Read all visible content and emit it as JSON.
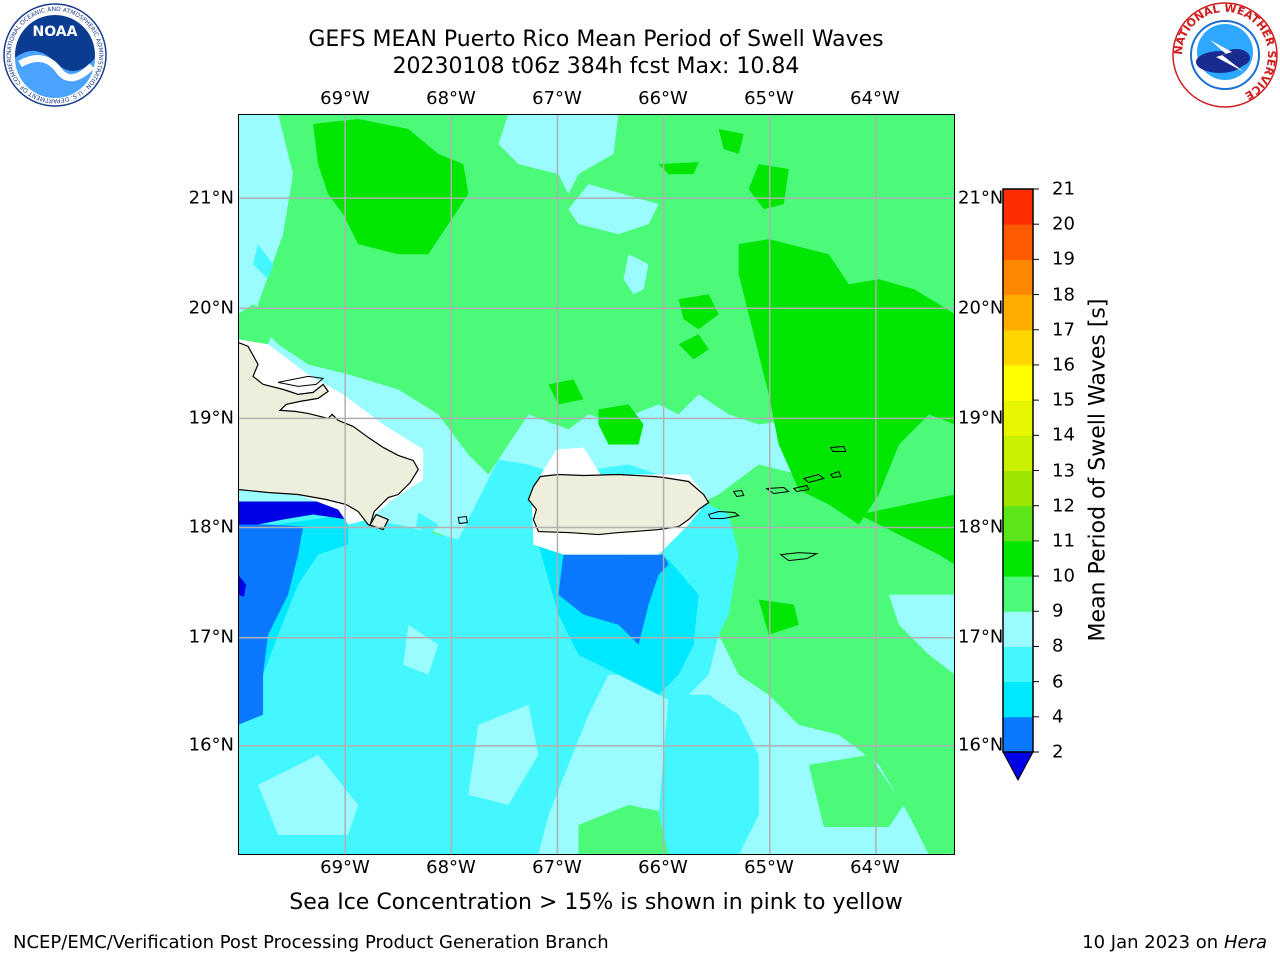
{
  "header": {
    "title_line1": "GEFS MEAN Puerto Rico Mean Period of Swell Waves",
    "title_line2": "20230108 t06z 384h fcst   Max: 10.84"
  },
  "logos": {
    "left": {
      "name": "NOAA",
      "ring_text": "NATIONAL OCEANIC AND ATMOSPHERIC ADMINISTRATION · U.S. DEPARTMENT OF COMMERCE"
    },
    "right": {
      "ring_text": "NATIONAL WEATHER SERVICE"
    }
  },
  "map": {
    "lon_labels": [
      "69°W",
      "68°W",
      "67°W",
      "66°W",
      "65°W",
      "64°W"
    ],
    "lat_labels": [
      "21°N",
      "20°N",
      "19°N",
      "18°N",
      "17°N",
      "16°N"
    ],
    "lon_range": [
      -70,
      -63.3
    ],
    "lat_range": [
      15,
      21.75
    ],
    "grid": true
  },
  "colorbar": {
    "label": "Mean Period of Swell Waves [s]",
    "ticks": [
      "2",
      "4",
      "6",
      "8",
      "9",
      "10",
      "11",
      "12",
      "13",
      "14",
      "15",
      "16",
      "17",
      "18",
      "19",
      "20",
      "21"
    ],
    "colors": [
      "#0a78ff",
      "#00e8ff",
      "#44f7ff",
      "#9afcff",
      "#4bfa78",
      "#00e600",
      "#5ce61a",
      "#9ee600",
      "#c8f000",
      "#e6f500",
      "#ffff00",
      "#ffd600",
      "#ffae00",
      "#ff8700",
      "#ff5a00",
      "#ff2d00"
    ],
    "under_color": "#0000e6"
  },
  "colors": {
    "land": "#eeeedc",
    "ocean_base": "#4bfa78",
    "green_dark": "#00e600",
    "cyan_light": "#9afcff",
    "cyan": "#44f7ff",
    "cyan_bright": "#00e8ff",
    "blue": "#0a78ff",
    "blue_deep": "#0000e6"
  },
  "footer": {
    "footnote": "Sea Ice Concentration > 15% is shown in pink to yellow",
    "credit_left": "NCEP/EMC/Verification Post Processing Product Generation Branch",
    "credit_date": "10 Jan 2023 on",
    "credit_host": "Hera"
  }
}
